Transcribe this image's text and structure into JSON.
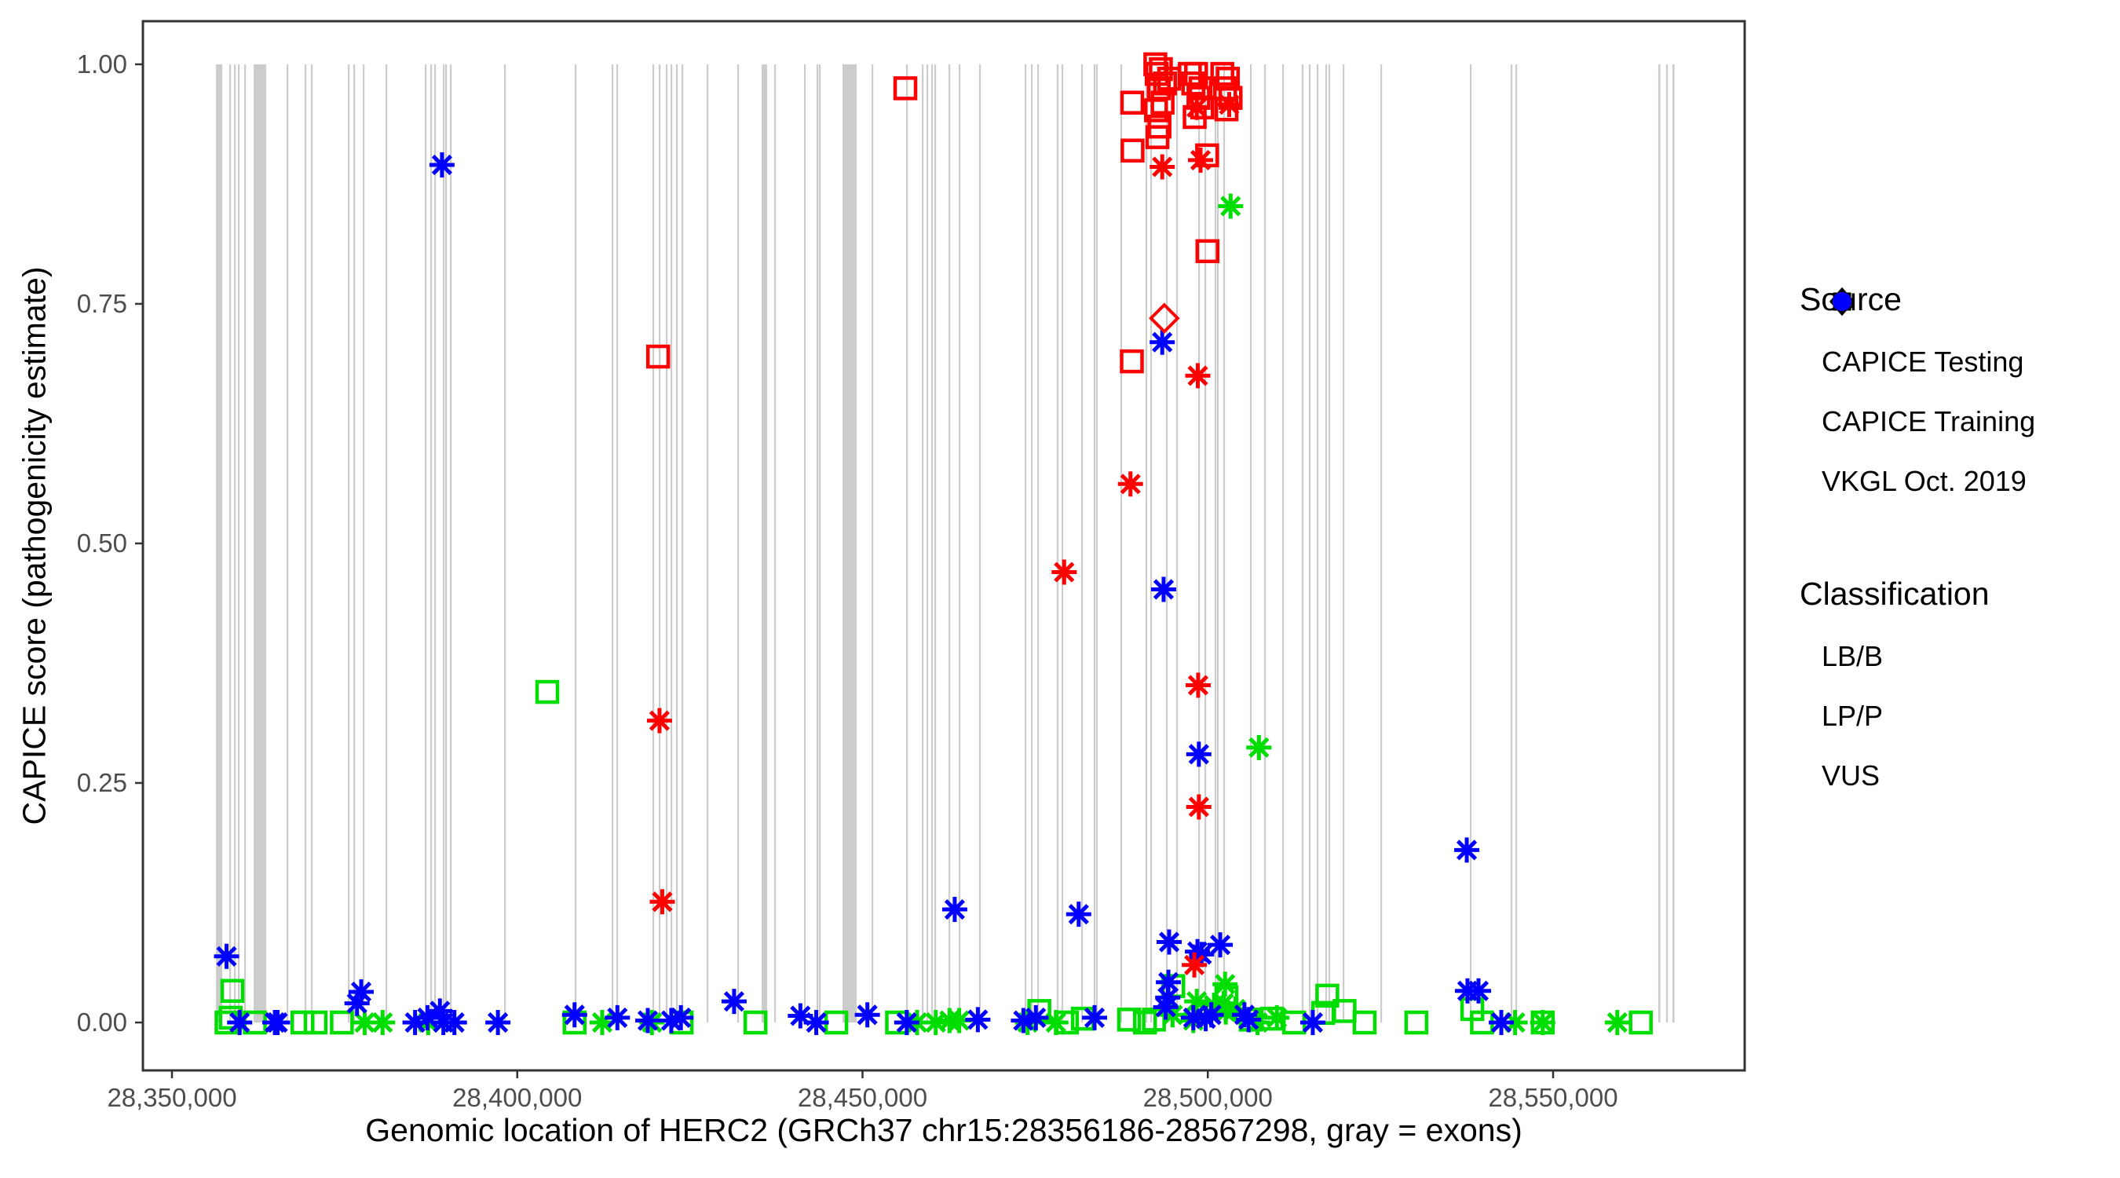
{
  "figure": {
    "x_axis_title": "Genomic location of HERC2 (GRCh37 chr15:28356186-28567298, gray = exons)",
    "y_axis_title": "CAPICE score (pathogenicity estimate)"
  },
  "legend": {
    "source": {
      "title": "Source",
      "items": [
        {
          "label": "CAPICE Testing",
          "glyph": "diamond"
        },
        {
          "label": "CAPICE Training",
          "glyph": "square"
        },
        {
          "label": "VKGL Oct. 2019",
          "glyph": "asterisk"
        }
      ]
    },
    "classification": {
      "title": "Classification",
      "items": [
        {
          "label": "LB/B",
          "color": "#00dd00"
        },
        {
          "label": "LP/P",
          "color": "#ff0000"
        },
        {
          "label": "VUS",
          "color": "#0000ff"
        }
      ]
    }
  },
  "chart_data": {
    "type": "scatter",
    "title": "",
    "xlabel": "Genomic location of HERC2 (GRCh37 chr15:28356186-28567298, gray = exons)",
    "ylabel": "CAPICE score (pathogenicity estimate)",
    "x_domain": [
      28345790,
      28577745
    ],
    "y_domain": [
      -0.05,
      1.045
    ],
    "grid": "off",
    "legend_position": "right",
    "x_ticks": [
      {
        "label": "28,350,000",
        "value": 28350000
      },
      {
        "label": "28,400,000",
        "value": 28400000
      },
      {
        "label": "28,450,000",
        "value": 28450000
      },
      {
        "label": "28,500,000",
        "value": 28500000
      },
      {
        "label": "28,550,000",
        "value": 28550000
      }
    ],
    "y_ticks": [
      {
        "label": "0.00",
        "value": 0
      },
      {
        "label": "0.25",
        "value": 0.25
      },
      {
        "label": "0.50",
        "value": 0.5
      },
      {
        "label": "0.75",
        "value": 0.75
      },
      {
        "label": "1.00",
        "value": 1.0
      }
    ],
    "exon_color": "#cccccc",
    "exon_band_y_range": [
      0,
      1
    ],
    "class_colors": {
      "LB/B": "#00dd00",
      "LP/P": "#ff0000",
      "VUS": "#0000ff"
    },
    "source_shapes": {
      "testing": "diamond",
      "training": "square",
      "vkgl": "asterisk"
    },
    "exons_bp_start_width": [
      [
        28356370,
        910
      ],
      [
        28358300,
        250
      ],
      [
        28358980,
        250
      ],
      [
        28359550,
        250
      ],
      [
        28360460,
        250
      ],
      [
        28361825,
        1820
      ],
      [
        28366600,
        250
      ],
      [
        28369215,
        250
      ],
      [
        28370125,
        250
      ],
      [
        28375470,
        250
      ],
      [
        28376265,
        250
      ],
      [
        28377630,
        250
      ],
      [
        28380925,
        250
      ],
      [
        28386610,
        250
      ],
      [
        28387405,
        250
      ],
      [
        28387975,
        250
      ],
      [
        28389225,
        250
      ],
      [
        28389565,
        250
      ],
      [
        28390250,
        250
      ],
      [
        28398095,
        250
      ],
      [
        28408330,
        250
      ],
      [
        28413670,
        250
      ],
      [
        28414350,
        250
      ],
      [
        28419580,
        250
      ],
      [
        28420490,
        250
      ],
      [
        28421515,
        250
      ],
      [
        28422195,
        250
      ],
      [
        28422990,
        250
      ],
      [
        28423790,
        250
      ],
      [
        28427430,
        250
      ],
      [
        28431860,
        250
      ],
      [
        28435385,
        795
      ],
      [
        28437205,
        250
      ],
      [
        28441525,
        250
      ],
      [
        28443345,
        250
      ],
      [
        28443685,
        250
      ],
      [
        28447100,
        2045
      ],
      [
        28451305,
        250
      ],
      [
        28456310,
        250
      ],
      [
        28458580,
        250
      ],
      [
        28459260,
        250
      ],
      [
        28459945,
        250
      ],
      [
        28460400,
        250
      ],
      [
        28462445,
        250
      ],
      [
        28463925,
        250
      ],
      [
        28466880,
        250
      ],
      [
        28473475,
        250
      ],
      [
        28474385,
        250
      ],
      [
        28475295,
        250
      ],
      [
        28478135,
        250
      ],
      [
        28478820,
        250
      ],
      [
        28481660,
        250
      ],
      [
        28483480,
        250
      ],
      [
        28483820,
        250
      ],
      [
        28487345,
        250
      ],
      [
        28490985,
        250
      ],
      [
        28491665,
        250
      ],
      [
        28493940,
        250
      ],
      [
        28495420,
        250
      ],
      [
        28498605,
        250
      ],
      [
        28499515,
        250
      ],
      [
        28500990,
        250
      ],
      [
        28501330,
        250
      ],
      [
        28502240,
        250
      ],
      [
        28506105,
        250
      ],
      [
        28508155,
        250
      ],
      [
        28510770,
        250
      ],
      [
        28513610,
        250
      ],
      [
        28514635,
        250
      ],
      [
        28515770,
        250
      ],
      [
        28517020,
        250
      ],
      [
        28517475,
        250
      ],
      [
        28519525,
        250
      ],
      [
        28524985,
        250
      ],
      [
        28537945,
        250
      ],
      [
        28543855,
        250
      ],
      [
        28544540,
        250
      ],
      [
        28565230,
        300
      ],
      [
        28566370,
        250
      ],
      [
        28567280,
        300
      ]
    ],
    "points_format": [
      "x_bp",
      "capice_score",
      "source",
      "classification"
    ],
    "points": [
      [
        28489050,
        0.96,
        "training",
        "LP/P"
      ],
      [
        28489100,
        0.91,
        "training",
        "LP/P"
      ],
      [
        28492400,
        1.0,
        "training",
        "LP/P"
      ],
      [
        28492600,
        0.99,
        "training",
        "LP/P"
      ],
      [
        28492900,
        0.975,
        "training",
        "LP/P"
      ],
      [
        28493200,
        0.995,
        "training",
        "LP/P"
      ],
      [
        28493450,
        0.96,
        "training",
        "LP/P"
      ],
      [
        28492500,
        0.952,
        "training",
        "LP/P"
      ],
      [
        28493800,
        0.98,
        "training",
        "LP/P"
      ],
      [
        28494400,
        0.985,
        "training",
        "LP/P"
      ],
      [
        28493000,
        0.935,
        "training",
        "LP/P"
      ],
      [
        28492700,
        0.924,
        "training",
        "LP/P"
      ],
      [
        28497400,
        0.99,
        "training",
        "LP/P"
      ],
      [
        28497900,
        0.98,
        "training",
        "LP/P"
      ],
      [
        28498300,
        0.99,
        "training",
        "LP/P"
      ],
      [
        28498650,
        0.965,
        "training",
        "LP/P"
      ],
      [
        28498950,
        0.975,
        "training",
        "LP/P"
      ],
      [
        28499200,
        0.955,
        "training",
        "LP/P"
      ],
      [
        28498100,
        0.945,
        "training",
        "LP/P"
      ],
      [
        28499900,
        0.905,
        "training",
        "LP/P"
      ],
      [
        28502100,
        0.99,
        "training",
        "LP/P"
      ],
      [
        28502500,
        0.975,
        "training",
        "LP/P"
      ],
      [
        28502900,
        0.985,
        "training",
        "LP/P"
      ],
      [
        28503300,
        0.965,
        "training",
        "LP/P"
      ],
      [
        28502700,
        0.953,
        "training",
        "LP/P"
      ],
      [
        28456200,
        0.975,
        "training",
        "LP/P"
      ],
      [
        28420400,
        0.695,
        "training",
        "LP/P"
      ],
      [
        28489000,
        0.69,
        "training",
        "LP/P"
      ],
      [
        28499950,
        0.805,
        "training",
        "LP/P"
      ],
      [
        28493700,
        0.735,
        "testing",
        "LP/P"
      ],
      [
        28493400,
        0.893,
        "vkgl",
        "LP/P"
      ],
      [
        28498400,
        0.955,
        "vkgl",
        "LP/P"
      ],
      [
        28498950,
        0.9,
        "vkgl",
        "LP/P"
      ],
      [
        28503100,
        0.958,
        "vkgl",
        "LP/P"
      ],
      [
        28488800,
        0.562,
        "vkgl",
        "LP/P"
      ],
      [
        28479200,
        0.47,
        "vkgl",
        "LP/P"
      ],
      [
        28498550,
        0.675,
        "vkgl",
        "LP/P"
      ],
      [
        28498600,
        0.352,
        "vkgl",
        "LP/P"
      ],
      [
        28498700,
        0.225,
        "vkgl",
        "LP/P"
      ],
      [
        28420600,
        0.315,
        "vkgl",
        "LP/P"
      ],
      [
        28421000,
        0.126,
        "vkgl",
        "LP/P"
      ],
      [
        28498050,
        0.06,
        "vkgl",
        "LP/P"
      ],
      [
        28389100,
        0.895,
        "vkgl",
        "VUS"
      ],
      [
        28493400,
        0.71,
        "vkgl",
        "VUS"
      ],
      [
        28493600,
        0.452,
        "vkgl",
        "VUS"
      ],
      [
        28498700,
        0.28,
        "vkgl",
        "VUS"
      ],
      [
        28463350,
        0.118,
        "vkgl",
        "VUS"
      ],
      [
        28481300,
        0.113,
        "vkgl",
        "VUS"
      ],
      [
        28537500,
        0.18,
        "vkgl",
        "VUS"
      ],
      [
        28494400,
        0.084,
        "vkgl",
        "VUS"
      ],
      [
        28498500,
        0.074,
        "vkgl",
        "VUS"
      ],
      [
        28499100,
        0.071,
        "vkgl",
        "VUS"
      ],
      [
        28501800,
        0.081,
        "vkgl",
        "VUS"
      ],
      [
        28357900,
        0.069,
        "vkgl",
        "VUS"
      ],
      [
        28537600,
        0.033,
        "vkgl",
        "VUS"
      ],
      [
        28539200,
        0.033,
        "vkgl",
        "VUS"
      ],
      [
        28377400,
        0.032,
        "vkgl",
        "VUS"
      ],
      [
        28376800,
        0.02,
        "vkgl",
        "VUS"
      ],
      [
        28431400,
        0.022,
        "vkgl",
        "VUS"
      ],
      [
        28388800,
        0.012,
        "vkgl",
        "VUS"
      ],
      [
        28387000,
        0.005,
        "vkgl",
        "VUS"
      ],
      [
        28414500,
        0.005,
        "vkgl",
        "VUS"
      ],
      [
        28441000,
        0.007,
        "vkgl",
        "VUS"
      ],
      [
        28450700,
        0.008,
        "vkgl",
        "VUS"
      ],
      [
        28475100,
        0.005,
        "vkgl",
        "VUS"
      ],
      [
        28408300,
        0.008,
        "vkgl",
        "VUS"
      ],
      [
        28494300,
        0.042,
        "vkgl",
        "VUS"
      ],
      [
        28494200,
        0.026,
        "vkgl",
        "VUS"
      ],
      [
        28493900,
        0.016,
        "vkgl",
        "VUS"
      ],
      [
        28359800,
        0,
        "vkgl",
        "VUS"
      ],
      [
        28364900,
        0,
        "vkgl",
        "VUS"
      ],
      [
        28365300,
        0,
        "vkgl",
        "VUS"
      ],
      [
        28385200,
        0,
        "vkgl",
        "VUS"
      ],
      [
        28389300,
        0,
        "vkgl",
        "VUS"
      ],
      [
        28390900,
        0,
        "vkgl",
        "VUS"
      ],
      [
        28397200,
        0,
        "vkgl",
        "VUS"
      ],
      [
        28418900,
        0.002,
        "vkgl",
        "VUS"
      ],
      [
        28422300,
        0.002,
        "vkgl",
        "VUS"
      ],
      [
        28423700,
        0.005,
        "vkgl",
        "VUS"
      ],
      [
        28443300,
        0,
        "vkgl",
        "VUS"
      ],
      [
        28456400,
        0,
        "vkgl",
        "VUS"
      ],
      [
        28466700,
        0.003,
        "vkgl",
        "VUS"
      ],
      [
        28473300,
        0.002,
        "vkgl",
        "VUS"
      ],
      [
        28483600,
        0.005,
        "vkgl",
        "VUS"
      ],
      [
        28515200,
        0,
        "vkgl",
        "VUS"
      ],
      [
        28542500,
        0,
        "vkgl",
        "VUS"
      ],
      [
        28497900,
        0.005,
        "vkgl",
        "VUS"
      ],
      [
        28499700,
        0.004,
        "vkgl",
        "VUS"
      ],
      [
        28500500,
        0.008,
        "vkgl",
        "VUS"
      ],
      [
        28505300,
        0.008,
        "vkgl",
        "VUS"
      ],
      [
        28505900,
        0.003,
        "vkgl",
        "VUS"
      ],
      [
        28404350,
        0.345,
        "training",
        "LB/B"
      ],
      [
        28358750,
        0.033,
        "training",
        "LB/B"
      ],
      [
        28358500,
        0.005,
        "training",
        "LB/B"
      ],
      [
        28357900,
        0,
        "training",
        "LB/B"
      ],
      [
        28362000,
        0,
        "training",
        "LB/B"
      ],
      [
        28368900,
        0,
        "training",
        "LB/B"
      ],
      [
        28370800,
        0,
        "training",
        "LB/B"
      ],
      [
        28374600,
        0,
        "training",
        "LB/B"
      ],
      [
        28408300,
        0,
        "training",
        "LB/B"
      ],
      [
        28423800,
        0,
        "training",
        "LB/B"
      ],
      [
        28434500,
        0,
        "training",
        "LB/B"
      ],
      [
        28446200,
        0,
        "training",
        "LB/B"
      ],
      [
        28455000,
        0,
        "training",
        "LB/B"
      ],
      [
        28475600,
        0.012,
        "training",
        "LB/B"
      ],
      [
        28479600,
        0,
        "training",
        "LB/B"
      ],
      [
        28481900,
        0.004,
        "training",
        "LB/B"
      ],
      [
        28488600,
        0.003,
        "training",
        "LB/B"
      ],
      [
        28490900,
        0,
        "training",
        "LB/B"
      ],
      [
        28492200,
        0.003,
        "training",
        "LB/B"
      ],
      [
        28495000,
        0.038,
        "training",
        "LB/B"
      ],
      [
        28502700,
        0.026,
        "training",
        "LB/B"
      ],
      [
        28506200,
        0.003,
        "training",
        "LB/B"
      ],
      [
        28509300,
        0.004,
        "training",
        "LB/B"
      ],
      [
        28512500,
        0,
        "training",
        "LB/B"
      ],
      [
        28517300,
        0.028,
        "training",
        "LB/B"
      ],
      [
        28516700,
        0.01,
        "training",
        "LB/B"
      ],
      [
        28519800,
        0.012,
        "training",
        "LB/B"
      ],
      [
        28522700,
        0,
        "training",
        "LB/B"
      ],
      [
        28530200,
        0,
        "training",
        "LB/B"
      ],
      [
        28538300,
        0.014,
        "training",
        "LB/B"
      ],
      [
        28539700,
        0,
        "training",
        "LB/B"
      ],
      [
        28548500,
        0,
        "training",
        "LB/B"
      ],
      [
        28562700,
        0,
        "training",
        "LB/B"
      ],
      [
        28503300,
        0.852,
        "vkgl",
        "LB/B"
      ],
      [
        28507400,
        0.287,
        "vkgl",
        "LB/B"
      ],
      [
        28377900,
        0,
        "vkgl",
        "LB/B"
      ],
      [
        28380500,
        0,
        "vkgl",
        "LB/B"
      ],
      [
        28387100,
        0,
        "vkgl",
        "LB/B"
      ],
      [
        28412300,
        0,
        "vkgl",
        "LB/B"
      ],
      [
        28419500,
        0,
        "vkgl",
        "LB/B"
      ],
      [
        28457900,
        0,
        "vkgl",
        "LB/B"
      ],
      [
        28460600,
        0,
        "vkgl",
        "LB/B"
      ],
      [
        28462600,
        0.002,
        "vkgl",
        "LB/B"
      ],
      [
        28464000,
        0.002,
        "vkgl",
        "LB/B"
      ],
      [
        28473900,
        0,
        "vkgl",
        "LB/B"
      ],
      [
        28478000,
        0,
        "vkgl",
        "LB/B"
      ],
      [
        28498400,
        0.022,
        "vkgl",
        "LB/B"
      ],
      [
        28502500,
        0.04,
        "vkgl",
        "LB/B"
      ],
      [
        28507200,
        0,
        "vkgl",
        "LB/B"
      ],
      [
        28510000,
        0.005,
        "vkgl",
        "LB/B"
      ],
      [
        28544500,
        0,
        "vkgl",
        "LB/B"
      ],
      [
        28548500,
        0,
        "vkgl",
        "LB/B"
      ],
      [
        28559300,
        0,
        "vkgl",
        "LB/B"
      ],
      [
        28494900,
        0.008,
        "vkgl",
        "LB/B"
      ],
      [
        28497900,
        0.002,
        "vkgl",
        "LB/B"
      ],
      [
        28500900,
        0.018,
        "vkgl",
        "LB/B"
      ],
      [
        28502300,
        0.02,
        "vkgl",
        "LB/B"
      ],
      [
        28502600,
        0.011,
        "vkgl",
        "LB/B"
      ],
      [
        28504000,
        0.014,
        "vkgl",
        "LB/B"
      ]
    ]
  }
}
